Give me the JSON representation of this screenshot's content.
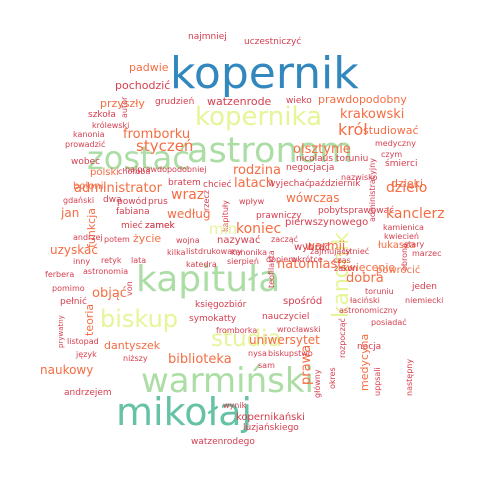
{
  "palette": {
    "red": "#d53e4f",
    "orange": "#f46d43",
    "gold": "#e6a640",
    "yellow": "#e6f598",
    "lightgreen": "#abdda4",
    "teal": "#66c2a5",
    "blue": "#3288bd"
  },
  "words": [
    {
      "text": "kopernik",
      "color": "blue",
      "weight": 10
    },
    {
      "text": "astronom",
      "color": "lightgreen",
      "weight": 8
    },
    {
      "text": "kapituła",
      "color": "lightgreen",
      "weight": 9
    },
    {
      "text": "warmiński",
      "color": "lightgreen",
      "weight": 9
    },
    {
      "text": "mikołaj",
      "color": "teal",
      "weight": 9
    },
    {
      "text": "zostać",
      "color": "lightgreen",
      "weight": 8
    },
    {
      "text": "kopernika",
      "color": "yellow",
      "weight": 7
    },
    {
      "text": "biskup",
      "color": "yellow",
      "weight": 6
    },
    {
      "text": "studia",
      "color": "yellow",
      "weight": 6
    },
    {
      "text": "kanonik",
      "color": "yellow",
      "weight": 5
    },
    {
      "text": "najmniej",
      "color": "red",
      "weight": 1
    },
    {
      "text": "uczestniczyć",
      "color": "red",
      "weight": 1
    },
    {
      "text": "padwie",
      "color": "orange",
      "weight": 2
    },
    {
      "text": "pochodzić",
      "color": "red",
      "weight": 2
    },
    {
      "text": "przyszły",
      "color": "orange",
      "weight": 2
    },
    {
      "text": "grudzień",
      "color": "red",
      "weight": 1
    },
    {
      "text": "watzenrode",
      "color": "red",
      "weight": 2
    },
    {
      "text": "wieko",
      "color": "red",
      "weight": 1
    },
    {
      "text": "prawdopodobny",
      "color": "orange",
      "weight": 2
    },
    {
      "text": "szkoła",
      "color": "red",
      "weight": 1
    },
    {
      "text": "autor",
      "color": "red",
      "weight": 1
    },
    {
      "text": "królewski",
      "color": "red",
      "weight": 1
    },
    {
      "text": "kanonia",
      "color": "red",
      "weight": 1
    },
    {
      "text": "fromborku",
      "color": "orange",
      "weight": 3
    },
    {
      "text": "krakowski",
      "color": "orange",
      "weight": 3
    },
    {
      "text": "król",
      "color": "orange",
      "weight": 4
    },
    {
      "text": "studiować",
      "color": "orange",
      "weight": 3
    },
    {
      "text": "prowadzić",
      "color": "red",
      "weight": 1
    },
    {
      "text": "styczeń",
      "color": "orange",
      "weight": 4
    },
    {
      "text": "medyczny",
      "color": "red",
      "weight": 1
    },
    {
      "text": "wobec",
      "color": "red",
      "weight": 1
    },
    {
      "text": "najprawdopodobniej",
      "color": "red",
      "weight": 1
    },
    {
      "text": "rodzina",
      "color": "orange",
      "weight": 3
    },
    {
      "text": "olsztynie",
      "color": "orange",
      "weight": 3
    },
    {
      "text": "nicolaus toruniu",
      "color": "red",
      "weight": 1
    },
    {
      "text": "czym",
      "color": "red",
      "weight": 1
    },
    {
      "text": "śmierci",
      "color": "red",
      "weight": 1
    },
    {
      "text": "polski",
      "color": "orange",
      "weight": 2
    },
    {
      "text": "bolonii",
      "color": "orange",
      "weight": 2
    },
    {
      "text": "bratem",
      "color": "red",
      "weight": 1
    },
    {
      "text": "chcieć",
      "color": "red",
      "weight": 1
    },
    {
      "text": "latach",
      "color": "orange",
      "weight": 3
    },
    {
      "text": "wyjechać",
      "color": "red",
      "weight": 1
    },
    {
      "text": "październik",
      "color": "red",
      "weight": 1
    },
    {
      "text": "administracyjny",
      "color": "red",
      "weight": 1
    },
    {
      "text": "dzieło",
      "color": "orange",
      "weight": 4
    },
    {
      "text": "administrator",
      "color": "orange",
      "weight": 3
    },
    {
      "text": "wraz",
      "color": "orange",
      "weight": 4
    },
    {
      "text": "gdański",
      "color": "red",
      "weight": 1
    },
    {
      "text": "dwa",
      "color": "red",
      "weight": 1
    },
    {
      "text": "powód",
      "color": "red",
      "weight": 1
    },
    {
      "text": "prus",
      "color": "red",
      "weight": 1
    },
    {
      "text": "fabiana",
      "color": "red",
      "weight": 1
    },
    {
      "text": "według",
      "color": "orange",
      "weight": 3
    },
    {
      "text": "rzecz",
      "color": "red",
      "weight": 1
    },
    {
      "text": "prawniczy",
      "color": "red",
      "weight": 1
    },
    {
      "text": "wówczas",
      "color": "orange",
      "weight": 3
    },
    {
      "text": "pobytsprawować",
      "color": "red",
      "weight": 1
    },
    {
      "text": "kanclerz",
      "color": "orange",
      "weight": 4
    },
    {
      "text": "jan",
      "color": "orange",
      "weight": 2
    },
    {
      "text": "funkcja",
      "color": "orange",
      "weight": 2
    },
    {
      "text": "zamek",
      "color": "red",
      "weight": 1
    },
    {
      "text": "mieć",
      "color": "red",
      "weight": 1
    },
    {
      "text": "kapituły",
      "color": "red",
      "weight": 1
    },
    {
      "text": "min",
      "color": "yellow",
      "weight": 4
    },
    {
      "text": "koniec",
      "color": "orange",
      "weight": 4
    },
    {
      "text": "pierwszynowego",
      "color": "red",
      "weight": 2
    },
    {
      "text": "kamienica",
      "color": "red",
      "weight": 1
    },
    {
      "text": "andrzej",
      "color": "red",
      "weight": 1
    },
    {
      "text": "potem",
      "color": "red",
      "weight": 1
    },
    {
      "text": "życie",
      "color": "orange",
      "weight": 3
    },
    {
      "text": "wojna",
      "color": "red",
      "weight": 1
    },
    {
      "text": "nazywać",
      "color": "red",
      "weight": 2
    },
    {
      "text": "zacząć",
      "color": "red",
      "weight": 1
    },
    {
      "text": "warmii",
      "color": "orange",
      "weight": 3
    },
    {
      "text": "kwiecień",
      "color": "red",
      "weight": 1
    },
    {
      "text": "uzyskać",
      "color": "orange",
      "weight": 3
    },
    {
      "text": "kilka",
      "color": "red",
      "weight": 1
    },
    {
      "text": "list",
      "color": "red",
      "weight": 1
    },
    {
      "text": "drukowany",
      "color": "red",
      "weight": 1
    },
    {
      "text": "kanonika",
      "color": "red",
      "weight": 1
    },
    {
      "text": "dopiero",
      "color": "red",
      "weight": 1
    },
    {
      "text": "wybrać",
      "color": "red",
      "weight": 2
    },
    {
      "text": "łukasza",
      "color": "orange",
      "weight": 2
    },
    {
      "text": "stary",
      "color": "red",
      "weight": 1
    },
    {
      "text": "obrona",
      "color": "red",
      "weight": 1
    },
    {
      "text": "marzec",
      "color": "red",
      "weight": 1
    },
    {
      "text": "inny",
      "color": "red",
      "weight": 1
    },
    {
      "text": "retyk",
      "color": "red",
      "weight": 1
    },
    {
      "text": "lata",
      "color": "red",
      "weight": 1
    },
    {
      "text": "katedra",
      "color": "red",
      "weight": 1
    },
    {
      "text": "sierpień",
      "color": "red",
      "weight": 1
    },
    {
      "text": "teofilakta",
      "color": "red",
      "weight": 1
    },
    {
      "text": "natomiast",
      "color": "orange",
      "weight": 3
    },
    {
      "text": "święcenie",
      "color": "orange",
      "weight": 2
    },
    {
      "text": "powrócić",
      "color": "orange",
      "weight": 2
    },
    {
      "text": "ferbera",
      "color": "red",
      "weight": 1
    },
    {
      "text": "astronomia",
      "color": "red",
      "weight": 1
    },
    {
      "text": "dobra",
      "color": "orange",
      "weight": 3
    },
    {
      "text": "toruniu",
      "color": "red",
      "weight": 1
    },
    {
      "text": "jeden",
      "color": "red",
      "weight": 1
    },
    {
      "text": "pomimo",
      "color": "red",
      "weight": 1
    },
    {
      "text": "objąć",
      "color": "orange",
      "weight": 3
    },
    {
      "text": "teoria",
      "color": "orange",
      "weight": 2
    },
    {
      "text": "von",
      "color": "red",
      "weight": 1
    },
    {
      "text": "spośród",
      "color": "red",
      "weight": 2
    },
    {
      "text": "łaciński",
      "color": "red",
      "weight": 1
    },
    {
      "text": "niemiecki",
      "color": "red",
      "weight": 1
    },
    {
      "text": "pełnić",
      "color": "red",
      "weight": 1
    },
    {
      "text": "księgozbiór",
      "color": "red",
      "weight": 1
    },
    {
      "text": "astronomiczny",
      "color": "red",
      "weight": 1
    },
    {
      "text": "posiadać",
      "color": "red",
      "weight": 1
    },
    {
      "text": "symokatty",
      "color": "red",
      "weight": 1
    },
    {
      "text": "nauczyciel",
      "color": "red",
      "weight": 1
    },
    {
      "text": "fromborka",
      "color": "red",
      "weight": 1
    },
    {
      "text": "wrocławski",
      "color": "red",
      "weight": 1
    },
    {
      "text": "prywatny",
      "color": "red",
      "weight": 1
    },
    {
      "text": "listopad",
      "color": "red",
      "weight": 1
    },
    {
      "text": "język",
      "color": "red",
      "weight": 1
    },
    {
      "text": "niższy",
      "color": "red",
      "weight": 1
    },
    {
      "text": "dantyszek",
      "color": "orange",
      "weight": 2
    },
    {
      "text": "uniwersytet",
      "color": "orange",
      "weight": 3
    },
    {
      "text": "rozpocząć",
      "color": "red",
      "weight": 1
    },
    {
      "text": "nacja",
      "color": "red",
      "weight": 1
    },
    {
      "text": "biblioteka",
      "color": "orange",
      "weight": 3
    },
    {
      "text": "prawa",
      "color": "orange",
      "weight": 3
    },
    {
      "text": "medycyna",
      "color": "orange",
      "weight": 2
    },
    {
      "text": "naukowy",
      "color": "orange",
      "weight": 3
    },
    {
      "text": "nysa",
      "color": "red",
      "weight": 1
    },
    {
      "text": "biskupstwo",
      "color": "red",
      "weight": 1
    },
    {
      "text": "sam",
      "color": "red",
      "weight": 1
    },
    {
      "text": "główny",
      "color": "red",
      "weight": 1
    },
    {
      "text": "okres",
      "color": "red",
      "weight": 1
    },
    {
      "text": "uppsali",
      "color": "red",
      "weight": 1
    },
    {
      "text": "następny",
      "color": "red",
      "weight": 1
    },
    {
      "text": "andrzejem",
      "color": "red",
      "weight": 1
    },
    {
      "text": "wynik",
      "color": "red",
      "weight": 1
    },
    {
      "text": "kopernikański",
      "color": "red",
      "weight": 1
    },
    {
      "text": "luzjańskiego",
      "color": "red",
      "weight": 1
    },
    {
      "text": "watzenrodego",
      "color": "red",
      "weight": 1
    },
    {
      "text": "istnieć",
      "color": "red",
      "weight": 1
    },
    {
      "text": "czas",
      "color": "red",
      "weight": 1
    },
    {
      "text": "zakon",
      "color": "red",
      "weight": 1
    },
    {
      "text": "zajmujący",
      "color": "red",
      "weight": 1
    },
    {
      "text": "wkrótce",
      "color": "red",
      "weight": 1
    },
    {
      "text": "dzięki",
      "color": "orange",
      "weight": 2
    },
    {
      "text": "choroba",
      "color": "red",
      "weight": 1
    },
    {
      "text": "negocjacja",
      "color": "red",
      "weight": 1
    },
    {
      "text": "wpływ",
      "color": "red",
      "weight": 1
    },
    {
      "text": "nazwisko",
      "color": "red",
      "weight": 1
    },
    {
      "text": "zamek",
      "color": "red",
      "weight": 1
    }
  ]
}
